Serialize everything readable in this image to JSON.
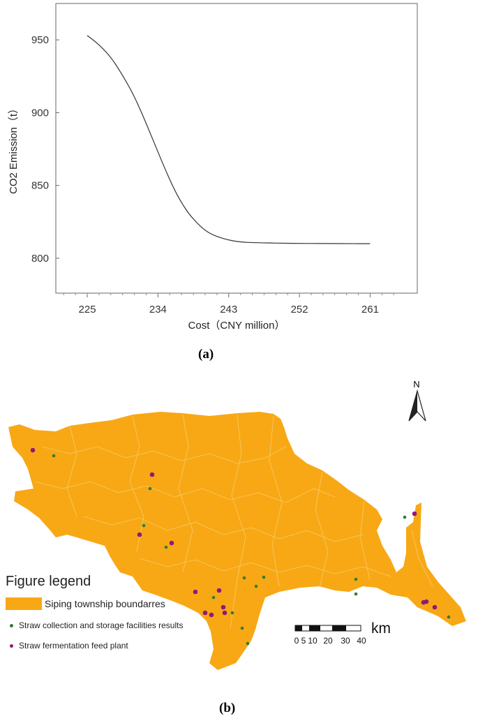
{
  "chart_data": {
    "type": "line",
    "xlabel": "Cost（CNY million）",
    "ylabel": "CO2 Emission（t）",
    "xlim": [
      221,
      267
    ],
    "ylim": [
      776,
      975
    ],
    "xticks": [
      225,
      234,
      243,
      252,
      261
    ],
    "yticks": [
      800,
      850,
      900,
      950
    ],
    "grid": false,
    "x": [
      225,
      226,
      227,
      228,
      229,
      230,
      231,
      232,
      233,
      234,
      235,
      236,
      237,
      238,
      239,
      240,
      241,
      242,
      243,
      244,
      245,
      246,
      248,
      250,
      252,
      254,
      256,
      258,
      261
    ],
    "y": [
      953,
      949,
      944,
      938,
      930,
      921,
      911,
      899,
      886,
      873,
      860,
      848,
      838,
      830,
      824,
      819,
      816,
      814,
      812.5,
      811.5,
      811,
      810.7,
      810.5,
      810.3,
      810.2,
      810.1,
      810.1,
      810,
      810
    ]
  },
  "labels": {
    "panel_a": "(a)",
    "panel_b": "(b)"
  },
  "map": {
    "north_label": "N",
    "legend_title": "Figure legend",
    "legend": [
      {
        "label": "Siping township boundarres",
        "color": "#f8a815"
      },
      {
        "label": "Straw collection and storage facilities results",
        "color": "#2e7d32"
      },
      {
        "label": "Straw fermentation feed plant",
        "color": "#8e1a7a"
      }
    ],
    "scale_ticks": [
      "0",
      "5",
      "10",
      "20",
      "30",
      "40"
    ],
    "scale_unit": "km"
  }
}
